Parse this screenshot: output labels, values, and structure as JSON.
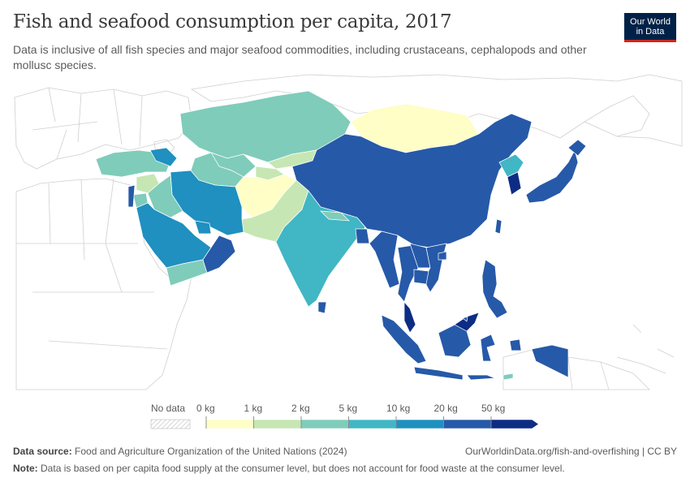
{
  "header": {
    "title": "Fish and seafood consumption per capita, 2017",
    "subtitle": "Data is inclusive of all fish species and major seafood commodities, including crustaceans, cephalopods and other mollusc species."
  },
  "logo": {
    "line1": "Our World",
    "line2": "in Data"
  },
  "legend": {
    "no_data_label": "No data",
    "ticks": [
      "0 kg",
      "1 kg",
      "2 kg",
      "5 kg",
      "10 kg",
      "20 kg",
      "50 kg"
    ],
    "colors": [
      "#fefec6",
      "#c6e7b3",
      "#7fccba",
      "#41b6c4",
      "#1f90c0",
      "#2659a8",
      "#0d2c84"
    ]
  },
  "footer": {
    "source_label": "Data source:",
    "source_text": "Food and Agriculture Organization of the United Nations (2024)",
    "url_text": "OurWorldinData.org/fish-and-overfishing | CC BY",
    "note_label": "Note:",
    "note_text": "Data is based on per capita food supply at the consumer level, but does not account for food waste at the consumer level."
  },
  "colors": {
    "background": "#ffffff",
    "no_data_outline": "#c8c8c8",
    "logo_bg": "#002147",
    "logo_accent": "#ce261e"
  }
}
